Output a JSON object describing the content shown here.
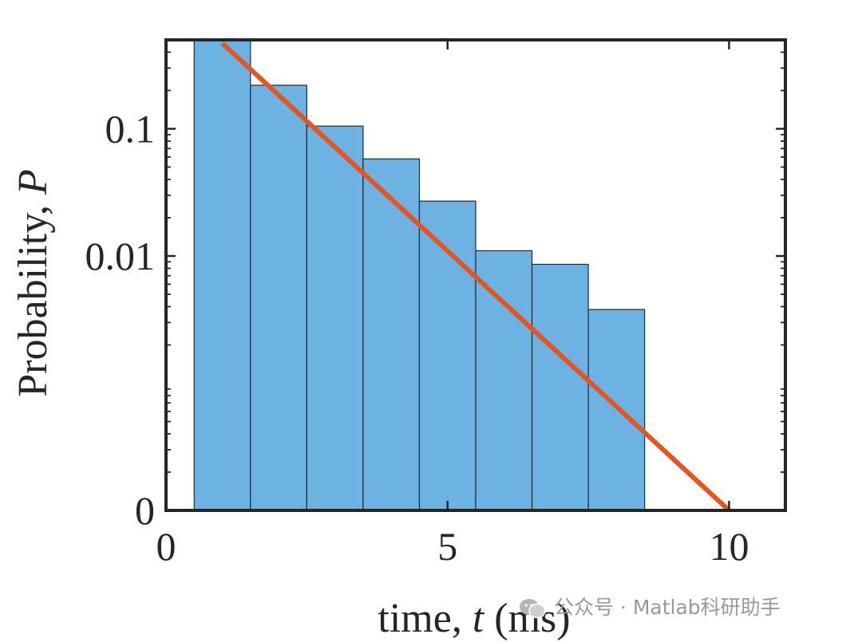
{
  "chart_data": {
    "type": "bar",
    "title": "",
    "xlabel": "time, ",
    "xlabel_italic": "t",
    "xlabel_suffix": " (ms)",
    "ylabel": "Probability, ",
    "ylabel_italic": "P",
    "xlim": [
      0,
      11
    ],
    "x_ticks": [
      0,
      5,
      10
    ],
    "x_tick_labels": [
      "0",
      "5",
      "10"
    ],
    "y_scale": "log (bottom tick labelled 0)",
    "ylim": [
      0.0001,
      0.5
    ],
    "y_ticks": [
      0.0001,
      0.01,
      0.1
    ],
    "y_tick_labels": [
      "0",
      "0.01",
      "0.1"
    ],
    "bin_width": 1,
    "categories": [
      1,
      2,
      3,
      4,
      5,
      6,
      7,
      8
    ],
    "values": [
      0.5,
      0.22,
      0.105,
      0.058,
      0.027,
      0.011,
      0.0086,
      0.0038
    ],
    "fit_line": {
      "x": [
        1,
        10
      ],
      "y": [
        0.47,
        0.0001
      ]
    },
    "grid": false,
    "legend": "none",
    "colors": {
      "bar": "#6cb3e3",
      "bar_edge": "#1f2a33",
      "fit_line": "#e4551f",
      "axes": "#262626"
    }
  },
  "watermark": {
    "text": "公众号 · Matlab科研助手",
    "icon": "wechat-icon"
  }
}
